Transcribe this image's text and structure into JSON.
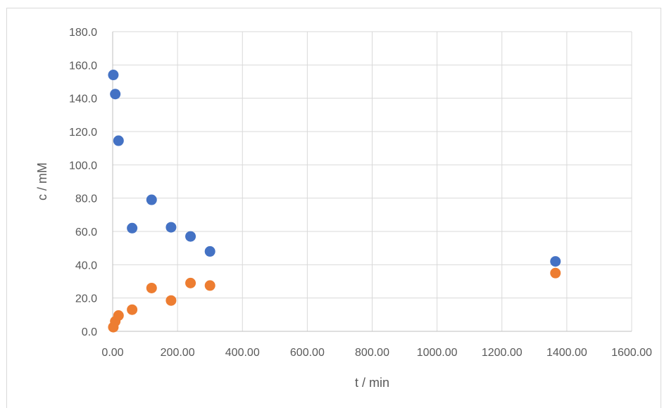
{
  "chart_data": {
    "type": "scatter",
    "xlabel": "t / min",
    "ylabel": "c / mM",
    "xlim": [
      0,
      1600
    ],
    "ylim": [
      0,
      180
    ],
    "x_ticks": [
      0,
      200,
      400,
      600,
      800,
      1000,
      1200,
      1400,
      1600
    ],
    "y_ticks": [
      0,
      20,
      40,
      60,
      80,
      100,
      120,
      140,
      160,
      180
    ],
    "x_tick_labels": [
      "0.00",
      "200.00",
      "400.00",
      "600.00",
      "800.00",
      "1000.00",
      "1200.00",
      "1400.00",
      "1600.00"
    ],
    "y_tick_labels": [
      "0.0",
      "20.0",
      "40.0",
      "60.0",
      "80.0",
      "100.0",
      "120.0",
      "140.0",
      "160.0",
      "180.0"
    ],
    "grid": true,
    "legend": "none",
    "series": [
      {
        "color": "#4472c4",
        "points": [
          {
            "x": 2,
            "y": 154
          },
          {
            "x": 8,
            "y": 142.5
          },
          {
            "x": 18,
            "y": 114.5
          },
          {
            "x": 60,
            "y": 62
          },
          {
            "x": 120,
            "y": 79
          },
          {
            "x": 180,
            "y": 62.5
          },
          {
            "x": 240,
            "y": 57
          },
          {
            "x": 300,
            "y": 48
          },
          {
            "x": 1365,
            "y": 42
          }
        ]
      },
      {
        "color": "#ed7d31",
        "points": [
          {
            "x": 2,
            "y": 2.5
          },
          {
            "x": 8,
            "y": 6
          },
          {
            "x": 18,
            "y": 9.5
          },
          {
            "x": 60,
            "y": 13
          },
          {
            "x": 120,
            "y": 26
          },
          {
            "x": 180,
            "y": 18.5
          },
          {
            "x": 240,
            "y": 29
          },
          {
            "x": 300,
            "y": 27.5
          },
          {
            "x": 1365,
            "y": 35
          }
        ]
      }
    ]
  }
}
